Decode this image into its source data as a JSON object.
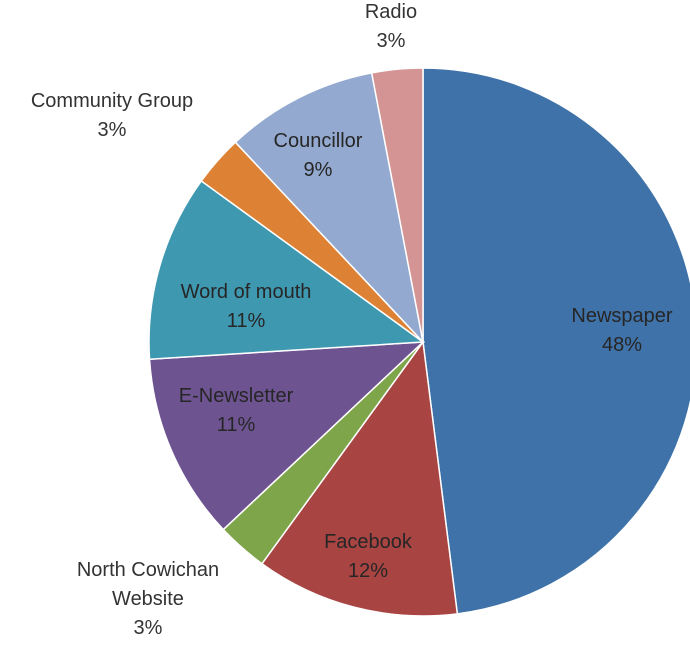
{
  "chart_data": {
    "type": "pie",
    "title": "",
    "slices": [
      {
        "name": "Newspaper",
        "value": 48,
        "label": "48%",
        "color": "#3f72a8"
      },
      {
        "name": "Facebook",
        "value": 12,
        "label": "12%",
        "color": "#a84442"
      },
      {
        "name": "North Cowichan Website",
        "value": 3,
        "label": "3%",
        "color": "#7fa54a",
        "name_lines": [
          "North Cowichan",
          "Website"
        ]
      },
      {
        "name": "E-Newsletter",
        "value": 11,
        "label": "11%",
        "color": "#6e5391"
      },
      {
        "name": "Word of mouth",
        "value": 11,
        "label": "11%",
        "color": "#3e98b0"
      },
      {
        "name": "Community Group",
        "value": 3,
        "label": "3%",
        "color": "#dd8235"
      },
      {
        "name": "Councillor",
        "value": 9,
        "label": "9%",
        "color": "#93a9cf"
      },
      {
        "name": "Radio",
        "value": 3,
        "label": "3%",
        "color": "#d39493"
      }
    ],
    "start_angle_deg": 0,
    "direction": "clockwise",
    "legend": "none",
    "data_labels": "category-and-percent"
  }
}
